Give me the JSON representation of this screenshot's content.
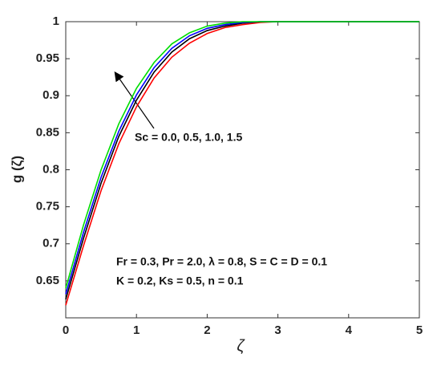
{
  "chart_data": {
    "type": "line",
    "x_label": "ζ",
    "y_label": "g (ζ)",
    "x": [
      0,
      0.25,
      0.5,
      0.75,
      1,
      1.25,
      1.5,
      1.75,
      2,
      2.25,
      2.5,
      2.75,
      3,
      5
    ],
    "series": [
      {
        "color": "#ff0000",
        "values": [
          0.617,
          0.697,
          0.772,
          0.835,
          0.885,
          0.924,
          0.952,
          0.971,
          0.984,
          0.992,
          0.996,
          0.999,
          1,
          1
        ]
      },
      {
        "color": "#000000",
        "values": [
          0.625,
          0.707,
          0.782,
          0.845,
          0.894,
          0.932,
          0.959,
          0.977,
          0.988,
          0.994,
          0.998,
          1,
          1,
          1
        ]
      },
      {
        "color": "#0000ff",
        "values": [
          0.632,
          0.715,
          0.79,
          0.852,
          0.901,
          0.938,
          0.964,
          0.981,
          0.991,
          0.996,
          0.999,
          1,
          1,
          1
        ]
      },
      {
        "color": "#00dd00",
        "values": [
          0.64,
          0.725,
          0.8,
          0.862,
          0.91,
          0.945,
          0.97,
          0.985,
          0.994,
          0.998,
          1,
          1,
          1,
          1
        ]
      }
    ],
    "annotations": [
      "Sc = 0.0, 0.5, 1.0, 1.5",
      "Fr = 0.3, Pr = 2.0, λ = 0.8, S = C = D = 0.1",
      "K = 0.2, Ks = 0.5, n = 0.1"
    ],
    "xlim": [
      0,
      5
    ],
    "ylim": [
      0.6,
      1
    ],
    "xticks": [
      0,
      1,
      2,
      3,
      4,
      5
    ],
    "yticks": [
      0.65,
      0.7,
      0.75,
      0.8,
      0.85,
      0.9,
      0.95,
      1
    ]
  }
}
